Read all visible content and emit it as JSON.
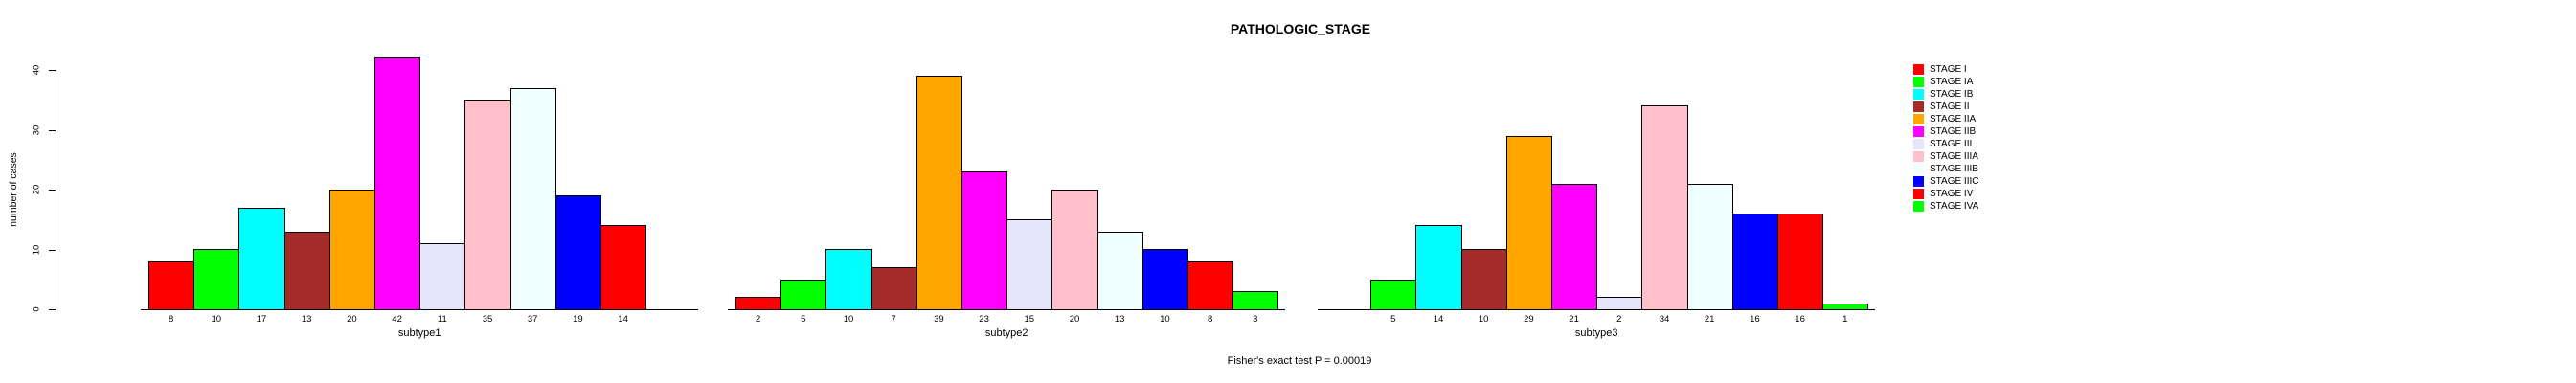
{
  "title": "PATHOLOGIC_STAGE",
  "chart_data": {
    "type": "bar",
    "title": "PATHOLOGIC_STAGE",
    "ylabel": "number of cases",
    "xlabel": "",
    "ylim": [
      0,
      40
    ],
    "yticks": [
      0,
      10,
      20,
      30,
      40
    ],
    "grid": false,
    "legend_position": "right",
    "annotation": "Fisher's exact test P = 0.00019",
    "stages": [
      {
        "name": "STAGE I",
        "color": "#FF0000"
      },
      {
        "name": "STAGE IA",
        "color": "#00FF00"
      },
      {
        "name": "STAGE IB",
        "color": "#00FFFF"
      },
      {
        "name": "STAGE II",
        "color": "#A52A2A"
      },
      {
        "name": "STAGE IIA",
        "color": "#FFA500"
      },
      {
        "name": "STAGE IIB",
        "color": "#FF00FF"
      },
      {
        "name": "STAGE III",
        "color": "#E6E6FA"
      },
      {
        "name": "STAGE IIIA",
        "color": "#FFC0CB"
      },
      {
        "name": "STAGE IIIB",
        "color": "#F0FFFF"
      },
      {
        "name": "STAGE IIIC",
        "color": "#0000FF"
      },
      {
        "name": "STAGE IV",
        "color": "#FF0000"
      },
      {
        "name": "STAGE IVA",
        "color": "#00FF00"
      }
    ],
    "panels": [
      {
        "xlabel": "subtype1",
        "values": [
          8,
          10,
          17,
          13,
          20,
          42,
          11,
          35,
          37,
          19,
          14,
          null
        ]
      },
      {
        "xlabel": "subtype2",
        "values": [
          2,
          5,
          10,
          7,
          39,
          23,
          15,
          20,
          13,
          10,
          8,
          3
        ]
      },
      {
        "xlabel": "subtype3",
        "values": [
          null,
          5,
          14,
          10,
          29,
          21,
          2,
          34,
          21,
          16,
          16,
          1
        ]
      }
    ]
  }
}
